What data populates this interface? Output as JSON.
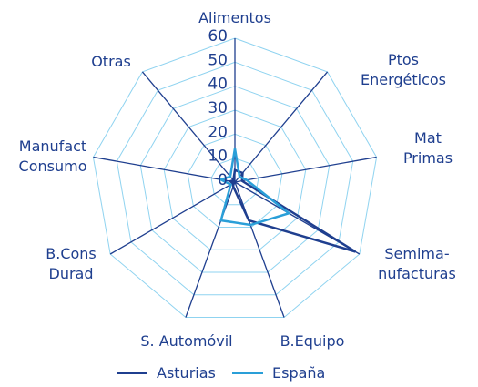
{
  "chart_data": {
    "type": "radar",
    "categories": [
      "Alimentos",
      "Ptos Energéticos",
      "Mat Primas",
      "Semima-\nnufacturas",
      "B.Equipo",
      "S. Automóvil",
      "B.Cons\nDurad",
      "Manufact\nConsumo",
      "Otras"
    ],
    "series": [
      {
        "name": "Asturias",
        "color": "#1f3f8f",
        "values": [
          5,
          5,
          3,
          58,
          17,
          2,
          1,
          2,
          1
        ]
      },
      {
        "name": "España",
        "color": "#2a9fd8",
        "values": [
          14,
          3,
          5,
          26,
          19,
          17,
          2,
          6,
          3
        ]
      }
    ],
    "ylim": [
      0,
      60
    ],
    "yticks": [
      0,
      10,
      20,
      30,
      40,
      50,
      60
    ],
    "grid": true
  }
}
